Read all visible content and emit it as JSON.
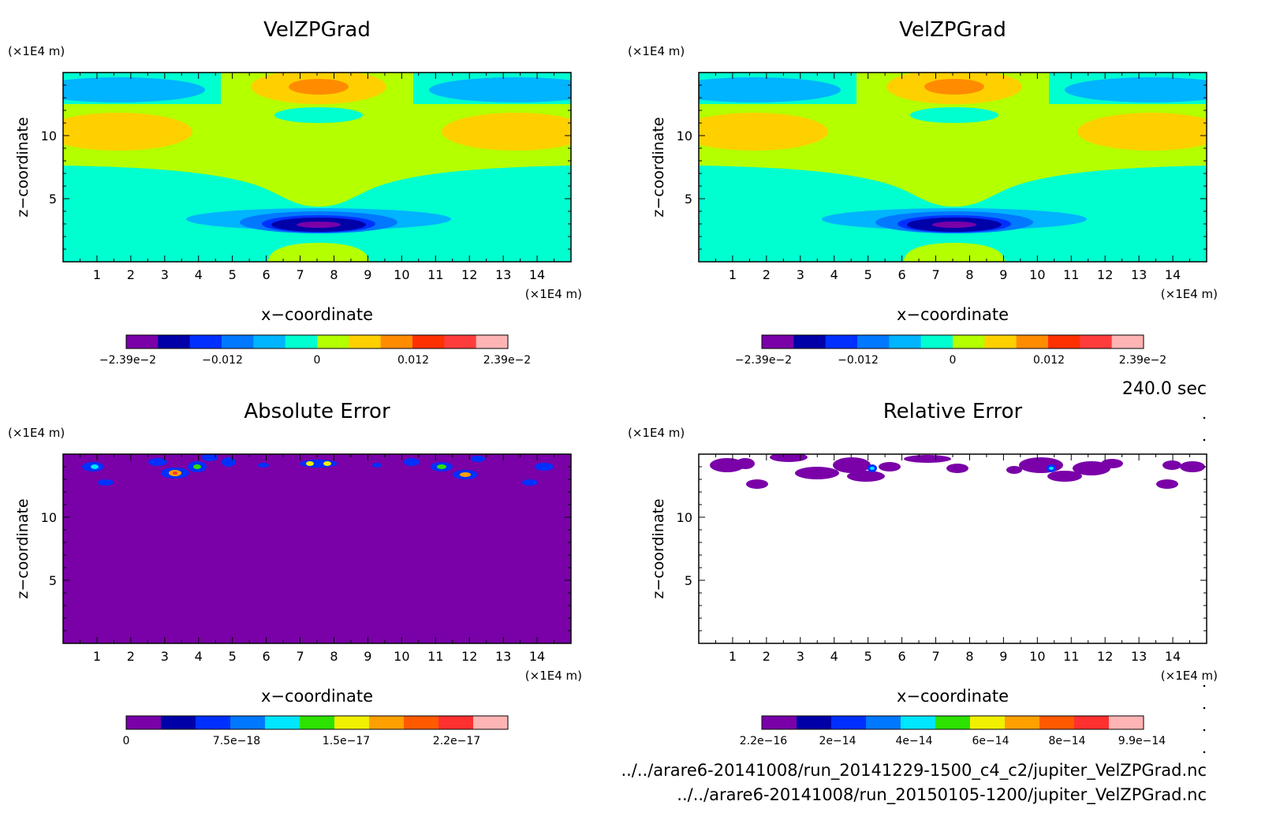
{
  "time_label": "240.0 sec",
  "files": [
    "../../arare6-20141008/run_20141229-1500_c4_c2/jupiter_VelZPGrad.nc",
    "../../arare6-20141008/run_20150105-1200/jupiter_VelZPGrad.nc"
  ],
  "colors": {
    "velocity_scale": [
      "#7a00a8",
      "#0000a8",
      "#0030ff",
      "#0078ff",
      "#00b4ff",
      "#00ffd0",
      "#b4ff00",
      "#ffd000",
      "#ff8c00",
      "#ff3000",
      "#ff3c3c",
      "#ffb4b4"
    ],
    "error_scale": [
      "#7a00a8",
      "#0000a8",
      "#0030ff",
      "#0078ff",
      "#00e6ff",
      "#2de100",
      "#f0f000",
      "#ffa000",
      "#ff5a00",
      "#ff3030",
      "#ffb4b4"
    ],
    "background": "#ffffff"
  },
  "chart_data": [
    {
      "type": "heatmap",
      "title": "VelZPGrad",
      "xlabel": "x−coordinate",
      "ylabel": "z−coordinate",
      "x_unit": "(×1E4 m)",
      "y_unit": "(×1E4 m)",
      "xlim": [
        0,
        15
      ],
      "ylim": [
        0,
        15
      ],
      "x_ticks": [
        "1",
        "2",
        "3",
        "4",
        "5",
        "6",
        "7",
        "8",
        "9",
        "10",
        "11",
        "12",
        "13",
        "14"
      ],
      "y_ticks": [
        "5",
        "10"
      ],
      "colorbar_labels": [
        "−2.39e−2",
        "−0.012",
        "0",
        "0.012",
        "2.39e−2"
      ],
      "value_range": [
        -0.0239,
        0.0239
      ]
    },
    {
      "type": "heatmap",
      "title": "VelZPGrad",
      "xlabel": "x−coordinate",
      "ylabel": "z−coordinate",
      "x_unit": "(×1E4 m)",
      "y_unit": "(×1E4 m)",
      "xlim": [
        0,
        15
      ],
      "ylim": [
        0,
        15
      ],
      "x_ticks": [
        "1",
        "2",
        "3",
        "4",
        "5",
        "6",
        "7",
        "8",
        "9",
        "10",
        "11",
        "12",
        "13",
        "14"
      ],
      "y_ticks": [
        "5",
        "10"
      ],
      "colorbar_labels": [
        "−2.39e−2",
        "−0.012",
        "0",
        "0.012",
        "2.39e−2"
      ],
      "value_range": [
        -0.0239,
        0.0239
      ]
    },
    {
      "type": "heatmap",
      "title": "Absolute Error",
      "xlabel": "x−coordinate",
      "ylabel": "z−coordinate",
      "x_unit": "(×1E4 m)",
      "y_unit": "(×1E4 m)",
      "xlim": [
        0,
        15
      ],
      "ylim": [
        0,
        15
      ],
      "x_ticks": [
        "1",
        "2",
        "3",
        "4",
        "5",
        "6",
        "7",
        "8",
        "9",
        "10",
        "11",
        "12",
        "13",
        "14"
      ],
      "y_ticks": [
        "5",
        "10"
      ],
      "colorbar_labels": [
        "0",
        "7.5e−18",
        "1.5e−17",
        "2.2e−17"
      ],
      "value_range": [
        0,
        2.9e-17
      ]
    },
    {
      "type": "heatmap",
      "title": "Relative Error",
      "xlabel": "x−coordinate",
      "ylabel": "z−coordinate",
      "x_unit": "(×1E4 m)",
      "y_unit": "(×1E4 m)",
      "xlim": [
        0,
        15
      ],
      "ylim": [
        0,
        15
      ],
      "x_ticks": [
        "1",
        "2",
        "3",
        "4",
        "5",
        "6",
        "7",
        "8",
        "9",
        "10",
        "11",
        "12",
        "13",
        "14"
      ],
      "y_ticks": [
        "5",
        "10"
      ],
      "colorbar_labels": [
        "2.2e−16",
        "2e−14",
        "4e−14",
        "6e−14",
        "8e−14",
        "9.9e−14"
      ],
      "value_range": [
        2.2e-16,
        9.9e-14
      ]
    }
  ]
}
